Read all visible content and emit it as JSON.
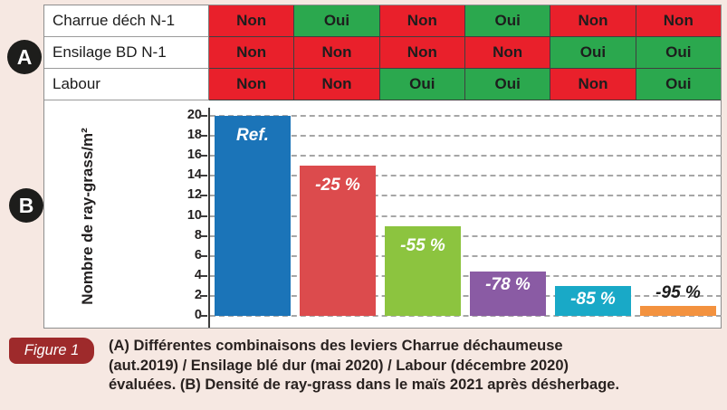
{
  "figure": {
    "section_a_label": "A",
    "section_b_label": "B"
  },
  "table": {
    "rows": [
      {
        "label": "Charrue déch N-1",
        "cells": [
          "Non",
          "Oui",
          "Non",
          "Oui",
          "Non",
          "Non"
        ]
      },
      {
        "label": "Ensilage BD N-1",
        "cells": [
          "Non",
          "Non",
          "Non",
          "Non",
          "Oui",
          "Oui"
        ]
      },
      {
        "label": "Labour",
        "cells": [
          "Non",
          "Non",
          "Oui",
          "Oui",
          "Non",
          "Oui"
        ]
      }
    ],
    "cell_colors": {
      "Non": "#e9202b",
      "Oui": "#2ba84e"
    }
  },
  "chart_data": {
    "type": "bar",
    "title": "",
    "xlabel": "",
    "ylabel": "Nombre de ray-grass/m²",
    "ylim": [
      0,
      20
    ],
    "ytick_step": 2,
    "grid": "horizontal-dashed",
    "categories": [
      "combo-1",
      "combo-2",
      "combo-3",
      "combo-4",
      "combo-5",
      "combo-6"
    ],
    "values": [
      20,
      15,
      9,
      4.4,
      3,
      1
    ],
    "bars": [
      {
        "value": 20,
        "label": "Ref.",
        "color": "#1b74b8",
        "label_color": "#ffffff",
        "label_position": "inside"
      },
      {
        "value": 15,
        "label": "-25 %",
        "color": "#dc4b4d",
        "label_color": "#ffffff",
        "label_position": "inside"
      },
      {
        "value": 9,
        "label": "-55 %",
        "color": "#8cc43f",
        "label_color": "#ffffff",
        "label_position": "inside"
      },
      {
        "value": 4.4,
        "label": "-78 %",
        "color": "#8a5ba4",
        "label_color": "#ffffff",
        "label_position": "tight"
      },
      {
        "value": 3,
        "label": "-85 %",
        "color": "#19a9c7",
        "label_color": "#ffffff",
        "label_position": "tight"
      },
      {
        "value": 1,
        "label": "-95 %",
        "color": "#f3923f",
        "label_color": "#1d1d1d",
        "label_position": "above"
      }
    ]
  },
  "caption": {
    "badge": "Figure 1",
    "lines": [
      "(A) Différentes combinaisons des leviers Charrue déchaumeuse",
      "(aut.2019) / Ensilage blé dur (mai 2020) / Labour (décembre 2020)",
      "évaluées. (B) Densité de ray-grass dans le maïs 2021 après désherbage."
    ]
  },
  "colors": {
    "background": "#f6e8e2",
    "panel_border": "#8e8e8e",
    "badge": "#9e2a2b",
    "non_red": "#e9202b",
    "oui_green": "#2ba84e"
  }
}
